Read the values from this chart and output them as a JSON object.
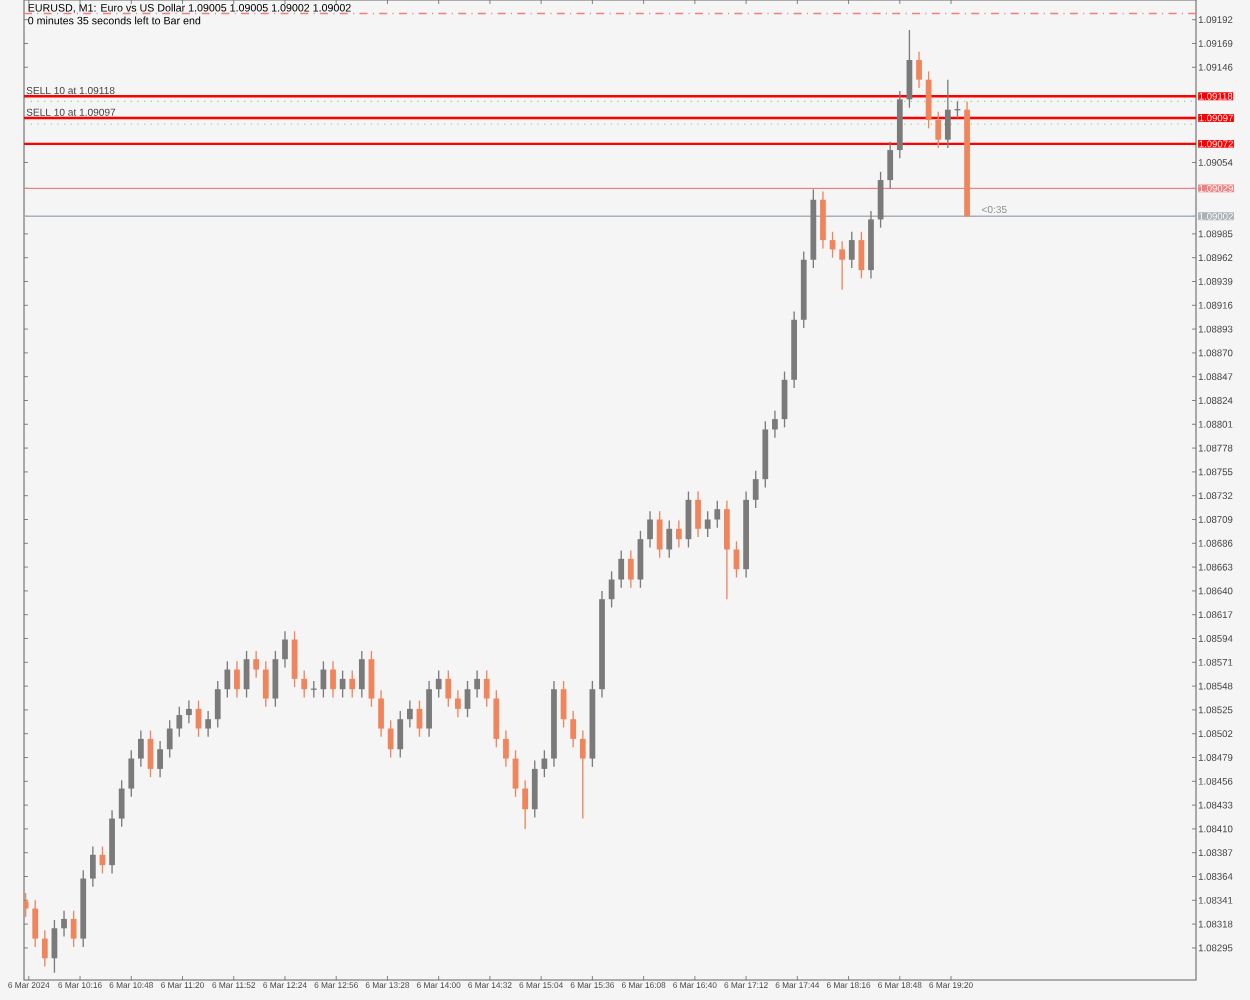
{
  "chart_data": {
    "type": "candlestick",
    "title": "EURUSD, M1:  Euro vs US Dollar  1.09005 1.09005 1.09002 1.09002",
    "subtitle": "0 minutes 35 seconds left to Bar end",
    "x": [
      "2024-03-06T09:42",
      "2024-03-06T09:48",
      "2024-03-06T09:54",
      "2024-03-06T10:00",
      "2024-03-06T10:06",
      "2024-03-06T10:12",
      "2024-03-06T10:18",
      "2024-03-06T10:24",
      "2024-03-06T10:30",
      "2024-03-06T10:36",
      "2024-03-06T10:42",
      "2024-03-06T10:48",
      "2024-03-06T10:54",
      "2024-03-06T11:00",
      "2024-03-06T11:06",
      "2024-03-06T11:12",
      "2024-03-06T11:18",
      "2024-03-06T11:24",
      "2024-03-06T11:30",
      "2024-03-06T11:36",
      "2024-03-06T11:42",
      "2024-03-06T11:48",
      "2024-03-06T11:54",
      "2024-03-06T12:00",
      "2024-03-06T12:06",
      "2024-03-06T12:12",
      "2024-03-06T12:18",
      "2024-03-06T12:24",
      "2024-03-06T12:30",
      "2024-03-06T12:36",
      "2024-03-06T12:42",
      "2024-03-06T12:48",
      "2024-03-06T12:54",
      "2024-03-06T13:00",
      "2024-03-06T13:06",
      "2024-03-06T13:12",
      "2024-03-06T13:18",
      "2024-03-06T13:24",
      "2024-03-06T13:30",
      "2024-03-06T13:36",
      "2024-03-06T13:42",
      "2024-03-06T13:48",
      "2024-03-06T13:54",
      "2024-03-06T14:00",
      "2024-03-06T14:06",
      "2024-03-06T14:12",
      "2024-03-06T14:18",
      "2024-03-06T14:24",
      "2024-03-06T14:30",
      "2024-03-06T14:36",
      "2024-03-06T14:42",
      "2024-03-06T14:48",
      "2024-03-06T14:54",
      "2024-03-06T15:00",
      "2024-03-06T15:06",
      "2024-03-06T15:12",
      "2024-03-06T15:18",
      "2024-03-06T15:24",
      "2024-03-06T15:30",
      "2024-03-06T15:36",
      "2024-03-06T15:42",
      "2024-03-06T15:48",
      "2024-03-06T15:54",
      "2024-03-06T16:00",
      "2024-03-06T16:06",
      "2024-03-06T16:12",
      "2024-03-06T16:18",
      "2024-03-06T16:24",
      "2024-03-06T16:30",
      "2024-03-06T16:36",
      "2024-03-06T16:42",
      "2024-03-06T16:48",
      "2024-03-06T16:54",
      "2024-03-06T17:00",
      "2024-03-06T17:06",
      "2024-03-06T17:12",
      "2024-03-06T17:18",
      "2024-03-06T17:24",
      "2024-03-06T17:30",
      "2024-03-06T17:36",
      "2024-03-06T17:42",
      "2024-03-06T17:48",
      "2024-03-06T17:54",
      "2024-03-06T18:00",
      "2024-03-06T18:06",
      "2024-03-06T18:12",
      "2024-03-06T18:18",
      "2024-03-06T18:24",
      "2024-03-06T18:30",
      "2024-03-06T18:36",
      "2024-03-06T18:42",
      "2024-03-06T18:48",
      "2024-03-06T18:54",
      "2024-03-06T19:00",
      "2024-03-06T19:06",
      "2024-03-06T19:12",
      "2024-03-06T19:18",
      "2024-03-06T19:24",
      "2024-03-06T19:30"
    ],
    "ohlc": [
      [
        1.0834,
        1.08348,
        1.08325,
        1.08333
      ],
      [
        1.08333,
        1.08341,
        1.08296,
        1.08304
      ],
      [
        1.08304,
        1.08312,
        1.08277,
        1.08285
      ],
      [
        1.08285,
        1.08322,
        1.08271,
        1.08314
      ],
      [
        1.08314,
        1.08331,
        1.08306,
        1.08323
      ],
      [
        1.08323,
        1.08331,
        1.08296,
        1.08304
      ],
      [
        1.08304,
        1.0837,
        1.08296,
        1.08362
      ],
      [
        1.08362,
        1.08393,
        1.08354,
        1.08385
      ],
      [
        1.08385,
        1.08393,
        1.08367,
        1.08375
      ],
      [
        1.08375,
        1.08428,
        1.08367,
        1.0842
      ],
      [
        1.0842,
        1.08457,
        1.08412,
        1.08449
      ],
      [
        1.08449,
        1.08486,
        1.08441,
        1.08478
      ],
      [
        1.08478,
        1.08505,
        1.0847,
        1.08497
      ],
      [
        1.08497,
        1.08505,
        1.0846,
        1.08468
      ],
      [
        1.08468,
        1.08495,
        1.0846,
        1.08487
      ],
      [
        1.08487,
        1.08515,
        1.08479,
        1.08507
      ],
      [
        1.08507,
        1.08528,
        1.08499,
        1.0852
      ],
      [
        1.0852,
        1.08534,
        1.08512,
        1.08526
      ],
      [
        1.08526,
        1.08534,
        1.08499,
        1.08507
      ],
      [
        1.08507,
        1.08524,
        1.08499,
        1.08516
      ],
      [
        1.08516,
        1.08553,
        1.08508,
        1.08545
      ],
      [
        1.08545,
        1.08572,
        1.08537,
        1.08564
      ],
      [
        1.08564,
        1.08572,
        1.08537,
        1.08545
      ],
      [
        1.08545,
        1.08582,
        1.08537,
        1.08574
      ],
      [
        1.08574,
        1.08582,
        1.08556,
        1.08564
      ],
      [
        1.08564,
        1.08572,
        1.08528,
        1.08536
      ],
      [
        1.08536,
        1.08582,
        1.08528,
        1.08574
      ],
      [
        1.08574,
        1.08601,
        1.08566,
        1.08593
      ],
      [
        1.08593,
        1.08601,
        1.08547,
        1.08555
      ],
      [
        1.08555,
        1.08563,
        1.08537,
        1.08545
      ],
      [
        1.08545,
        1.08553,
        1.08537,
        1.08545
      ],
      [
        1.08545,
        1.08572,
        1.08537,
        1.08564
      ],
      [
        1.08564,
        1.08572,
        1.08537,
        1.08545
      ],
      [
        1.08545,
        1.08563,
        1.08537,
        1.08555
      ],
      [
        1.08555,
        1.08563,
        1.08537,
        1.08545
      ],
      [
        1.08545,
        1.08582,
        1.08537,
        1.08574
      ],
      [
        1.08574,
        1.08582,
        1.08528,
        1.08536
      ],
      [
        1.08536,
        1.08544,
        1.08499,
        1.08507
      ],
      [
        1.08507,
        1.08515,
        1.08479,
        1.08487
      ],
      [
        1.08487,
        1.08524,
        1.08479,
        1.08516
      ],
      [
        1.08516,
        1.08534,
        1.08508,
        1.08526
      ],
      [
        1.08526,
        1.08534,
        1.08499,
        1.08507
      ],
      [
        1.08507,
        1.08553,
        1.08499,
        1.08545
      ],
      [
        1.08545,
        1.08563,
        1.08537,
        1.08555
      ],
      [
        1.08555,
        1.08563,
        1.08528,
        1.08536
      ],
      [
        1.08536,
        1.08544,
        1.08518,
        1.08526
      ],
      [
        1.08526,
        1.08553,
        1.08518,
        1.08545
      ],
      [
        1.08545,
        1.08563,
        1.08537,
        1.08555
      ],
      [
        1.08555,
        1.08563,
        1.08528,
        1.08536
      ],
      [
        1.08536,
        1.08544,
        1.08489,
        1.08497
      ],
      [
        1.08497,
        1.08505,
        1.0847,
        1.08478
      ],
      [
        1.08478,
        1.08486,
        1.08441,
        1.08449
      ],
      [
        1.08449,
        1.08457,
        1.0841,
        1.08429
      ],
      [
        1.08429,
        1.08476,
        1.08421,
        1.08468
      ],
      [
        1.08468,
        1.08486,
        1.0846,
        1.08478
      ],
      [
        1.08478,
        1.08553,
        1.0847,
        1.08545
      ],
      [
        1.08545,
        1.08553,
        1.08508,
        1.08516
      ],
      [
        1.08516,
        1.08524,
        1.08489,
        1.08497
      ],
      [
        1.08497,
        1.08505,
        1.0842,
        1.08478
      ],
      [
        1.08478,
        1.08553,
        1.0847,
        1.08545
      ],
      [
        1.08545,
        1.0864,
        1.08537,
        1.08632
      ],
      [
        1.08632,
        1.08659,
        1.08624,
        1.08651
      ],
      [
        1.08651,
        1.08679,
        1.08643,
        1.08671
      ],
      [
        1.08671,
        1.08679,
        1.08643,
        1.08651
      ],
      [
        1.08651,
        1.08698,
        1.08643,
        1.0869
      ],
      [
        1.0869,
        1.08717,
        1.08682,
        1.08709
      ],
      [
        1.08709,
        1.08717,
        1.08672,
        1.0868
      ],
      [
        1.0868,
        1.08708,
        1.08672,
        1.087
      ],
      [
        1.087,
        1.08708,
        1.08682,
        1.0869
      ],
      [
        1.0869,
        1.08736,
        1.08682,
        1.08728
      ],
      [
        1.08728,
        1.08736,
        1.08692,
        1.087
      ],
      [
        1.087,
        1.08717,
        1.08692,
        1.08709
      ],
      [
        1.08709,
        1.08727,
        1.08701,
        1.08719
      ],
      [
        1.08719,
        1.08727,
        1.08632,
        1.0868
      ],
      [
        1.0868,
        1.08688,
        1.08653,
        1.08661
      ],
      [
        1.08661,
        1.08736,
        1.08653,
        1.08728
      ],
      [
        1.08728,
        1.08756,
        1.0872,
        1.08748
      ],
      [
        1.08748,
        1.08804,
        1.0874,
        1.08796
      ],
      [
        1.08796,
        1.08814,
        1.08788,
        1.08806
      ],
      [
        1.08806,
        1.08852,
        1.08798,
        1.08844
      ],
      [
        1.08844,
        1.0891,
        1.08836,
        1.08902
      ],
      [
        1.08902,
        1.08968,
        1.08894,
        1.0896
      ],
      [
        1.0896,
        1.09028,
        1.08952,
        1.09018
      ],
      [
        1.09018,
        1.09026,
        1.08971,
        1.08979
      ],
      [
        1.08979,
        1.08987,
        1.08962,
        1.0897
      ],
      [
        1.0897,
        1.08978,
        1.08931,
        1.0896
      ],
      [
        1.0896,
        1.08987,
        1.08952,
        1.08979
      ],
      [
        1.08979,
        1.08987,
        1.08942,
        1.0895
      ],
      [
        1.0895,
        1.09007,
        1.08942,
        1.08999
      ],
      [
        1.08999,
        1.09045,
        1.08991,
        1.09037
      ],
      [
        1.09037,
        1.09074,
        1.09029,
        1.09066
      ],
      [
        1.09066,
        1.09123,
        1.09058,
        1.09115
      ],
      [
        1.09115,
        1.09182,
        1.09107,
        1.09153
      ],
      [
        1.09153,
        1.09161,
        1.09126,
        1.09134
      ],
      [
        1.09134,
        1.09142,
        1.09087,
        1.09095
      ],
      [
        1.09095,
        1.09103,
        1.09068,
        1.09076
      ],
      [
        1.09076,
        1.09134,
        1.09068,
        1.09105
      ],
      [
        1.09105,
        1.09113,
        1.09097,
        1.09105
      ],
      [
        1.09105,
        1.09113,
        1.09002,
        1.09002
      ]
    ],
    "xlim": [
      "2024-03-06T09:41",
      "2024-03-06T21:53"
    ],
    "ylim": [
      1.08264,
      1.09211
    ],
    "xticks": [
      {
        "value": "2024-03-06T09:44",
        "label": "6 Mar 2024"
      },
      {
        "value": "2024-03-06T10:16",
        "label": "6 Mar 10:16"
      },
      {
        "value": "2024-03-06T10:48",
        "label": "6 Mar 10:48"
      },
      {
        "value": "2024-03-06T11:20",
        "label": "6 Mar 11:20"
      },
      {
        "value": "2024-03-06T11:52",
        "label": "6 Mar 11:52"
      },
      {
        "value": "2024-03-06T12:24",
        "label": "6 Mar 12:24"
      },
      {
        "value": "2024-03-06T12:56",
        "label": "6 Mar 12:56"
      },
      {
        "value": "2024-03-06T13:28",
        "label": "6 Mar 13:28"
      },
      {
        "value": "2024-03-06T14:00",
        "label": "6 Mar 14:00"
      },
      {
        "value": "2024-03-06T14:32",
        "label": "6 Mar 14:32"
      },
      {
        "value": "2024-03-06T15:04",
        "label": "6 Mar 15:04"
      },
      {
        "value": "2024-03-06T15:36",
        "label": "6 Mar 15:36"
      },
      {
        "value": "2024-03-06T16:08",
        "label": "6 Mar 16:08"
      },
      {
        "value": "2024-03-06T16:40",
        "label": "6 Mar 16:40"
      },
      {
        "value": "2024-03-06T17:12",
        "label": "6 Mar 17:12"
      },
      {
        "value": "2024-03-06T17:44",
        "label": "6 Mar 17:44"
      },
      {
        "value": "2024-03-06T18:16",
        "label": "6 Mar 18:16"
      },
      {
        "value": "2024-03-06T18:48",
        "label": "6 Mar 18:48"
      },
      {
        "value": "2024-03-06T19:20",
        "label": "6 Mar 19:20"
      }
    ],
    "yticks": [
      1.08295,
      1.08318,
      1.08341,
      1.08364,
      1.08387,
      {
        "value": 1.0841,
        "label": "1.08410"
      },
      1.08433,
      1.08456,
      1.08479,
      1.08502,
      1.08525,
      1.08548,
      1.08571,
      1.08594,
      1.08617,
      {
        "value": 1.0864,
        "label": "1.08640"
      },
      1.08663,
      1.08686,
      1.08709,
      1.08732,
      1.08755,
      1.08778,
      1.08801,
      1.08824,
      1.08847,
      {
        "value": 1.0887,
        "label": "1.08870"
      },
      1.08893,
      1.08916,
      1.08939,
      1.08962,
      1.08985,
      1.09002,
      1.09029,
      1.09054,
      1.09072,
      1.09097,
      1.09118,
      1.09146,
      1.09169,
      1.09192
    ],
    "ref_lines": [
      {
        "axis": "y",
        "value": 1.09198,
        "color": "#f08080",
        "line_style": "dashdot"
      },
      {
        "axis": "y",
        "value": 1.09118,
        "color": "#ff0000",
        "label": "SELL 10 at 1.09118"
      },
      {
        "axis": "y",
        "value": 1.09113,
        "color": "#90d890",
        "line_style": "dotted"
      },
      {
        "axis": "y",
        "value": 1.09097,
        "color": "#ff0000",
        "label": "SELL 10 at 1.09097"
      },
      {
        "axis": "y",
        "value": 1.09091,
        "color": "#90d890",
        "line_style": "dotted"
      },
      {
        "axis": "y",
        "value": 1.09072,
        "color": "#ff0000"
      },
      {
        "axis": "y",
        "value": 1.09029,
        "color": "#f08080"
      },
      {
        "axis": "y",
        "value": 1.09002,
        "color": "#a8b0b8"
      }
    ],
    "annotations": [
      {
        "text": "<0:35",
        "x": "2024-03-06T19:37",
        "y": 1.09002
      }
    ],
    "grid": false
  }
}
